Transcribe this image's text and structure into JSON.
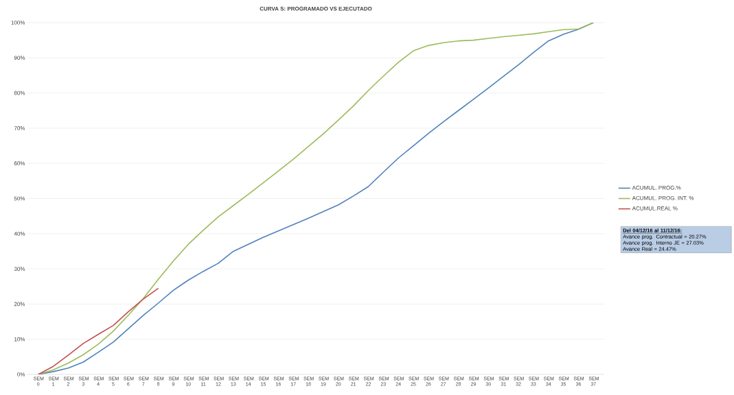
{
  "chart_data": {
    "type": "line",
    "title": "CURVA S: PROGRAMADO VS EJECUTADO",
    "categories": [
      "SEM 0",
      "SEM 1",
      "SEM 2",
      "SEM 3",
      "SEM 4",
      "SEM 5",
      "SEM 6",
      "SEM 7",
      "SEM 8",
      "SEM 9",
      "SEM 10",
      "SEM 11",
      "SEM 12",
      "SEM 13",
      "SEM 14",
      "SEM 15",
      "SEM 16",
      "SEM 17",
      "SEM 18",
      "SEM 19",
      "SEM 20",
      "SEM 21",
      "SEM 22",
      "SEM 23",
      "SEM 24",
      "SEM 25",
      "SEM 26",
      "SEM 27",
      "SEM 28",
      "SEM 29",
      "SEM 30",
      "SEM 31",
      "SEM 32",
      "SEM 33",
      "SEM 34",
      "SEM 35",
      "SEM 36",
      "SEM 37"
    ],
    "series": [
      {
        "name": "ACUMUL. PROG.%",
        "color": "#4f81bd",
        "values": [
          0,
          0.8,
          1.8,
          3.5,
          6.3,
          9.2,
          13,
          16.8,
          20.27,
          23.9,
          26.8,
          29.3,
          31.6,
          35,
          37,
          39,
          40.8,
          42.6,
          44.4,
          46.3,
          48.2,
          50.7,
          53.4,
          57.5,
          61.5,
          65,
          68.5,
          71.8,
          75,
          78.2,
          81.4,
          84.7,
          88,
          91.5,
          94.8,
          96.7,
          98.1,
          100
        ]
      },
      {
        "name": "ACUMUL. PROG. INT. %",
        "color": "#9bbb59",
        "values": [
          0,
          1.3,
          3.2,
          5.6,
          8.6,
          12.3,
          16.8,
          21.6,
          27.03,
          32.2,
          37,
          41,
          44.8,
          48,
          51.2,
          54.5,
          57.8,
          61.2,
          64.8,
          68.4,
          72.3,
          76.3,
          80.7,
          84.8,
          88.7,
          92,
          93.5,
          94.3,
          94.8,
          95,
          95.5,
          96,
          96.4,
          96.8,
          97.4,
          98,
          98.2,
          100
        ]
      },
      {
        "name": "ACUMUL.REAL %",
        "color": "#c0504d",
        "values": [
          0,
          2.3,
          5.5,
          8.8,
          11.4,
          13.9,
          17.8,
          21.4,
          24.47,
          null,
          null,
          null,
          null,
          null,
          null,
          null,
          null,
          null,
          null,
          null,
          null,
          null,
          null,
          null,
          null,
          null,
          null,
          null,
          null,
          null,
          null,
          null,
          null,
          null,
          null,
          null,
          null,
          null
        ]
      }
    ],
    "ylim": [
      0,
      100
    ],
    "yticks": [
      {
        "value": 0,
        "label": "0%"
      },
      {
        "value": 10,
        "label": "10%"
      },
      {
        "value": 20,
        "label": "20%"
      },
      {
        "value": 30,
        "label": "30%"
      },
      {
        "value": 40,
        "label": "40%"
      },
      {
        "value": 50,
        "label": "50%"
      },
      {
        "value": 60,
        "label": "60%"
      },
      {
        "value": 70,
        "label": "70%"
      },
      {
        "value": 80,
        "label": "80%"
      },
      {
        "value": 90,
        "label": "90%"
      },
      {
        "value": 100,
        "label": "100%"
      }
    ],
    "grid": "y",
    "legend": "right",
    "marker": "none",
    "line_style": "solid",
    "annotations": [
      "Del  04/12/16 al  11/12/16:",
      "Avance prog. Contractual = 20.27%",
      "Avance prog. Interno JE = 27.03%",
      "Avance Real = 24.47%"
    ]
  }
}
